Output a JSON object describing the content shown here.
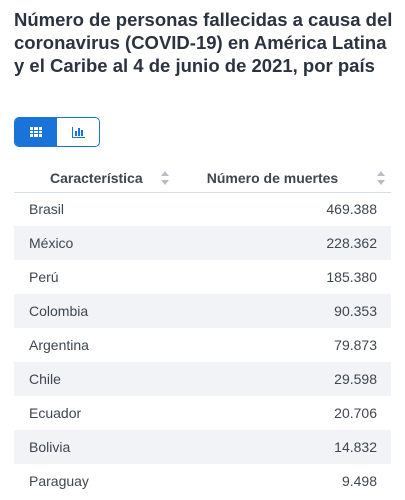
{
  "title": "Número de personas fallecidas a causa del coronavirus (COVID-19) en América Latina y el Caribe al 4 de junio de 2021, por país",
  "view_toggle": {
    "options": [
      {
        "icon": "table-icon",
        "active": true
      },
      {
        "icon": "bar-chart-icon",
        "active": false
      }
    ],
    "accent_color": "#1a73d9"
  },
  "table": {
    "columns": [
      "Característica",
      "Número de muertes"
    ],
    "rows": [
      {
        "country": "Brasil",
        "deaths": "469.388"
      },
      {
        "country": "México",
        "deaths": "228.362"
      },
      {
        "country": "Perú",
        "deaths": "185.380"
      },
      {
        "country": "Colombia",
        "deaths": "90.353"
      },
      {
        "country": "Argentina",
        "deaths": "79.873"
      },
      {
        "country": "Chile",
        "deaths": "29.598"
      },
      {
        "country": "Ecuador",
        "deaths": "20.706"
      },
      {
        "country": "Bolivia",
        "deaths": "14.832"
      },
      {
        "country": "Paraguay",
        "deaths": "9.498"
      }
    ]
  }
}
